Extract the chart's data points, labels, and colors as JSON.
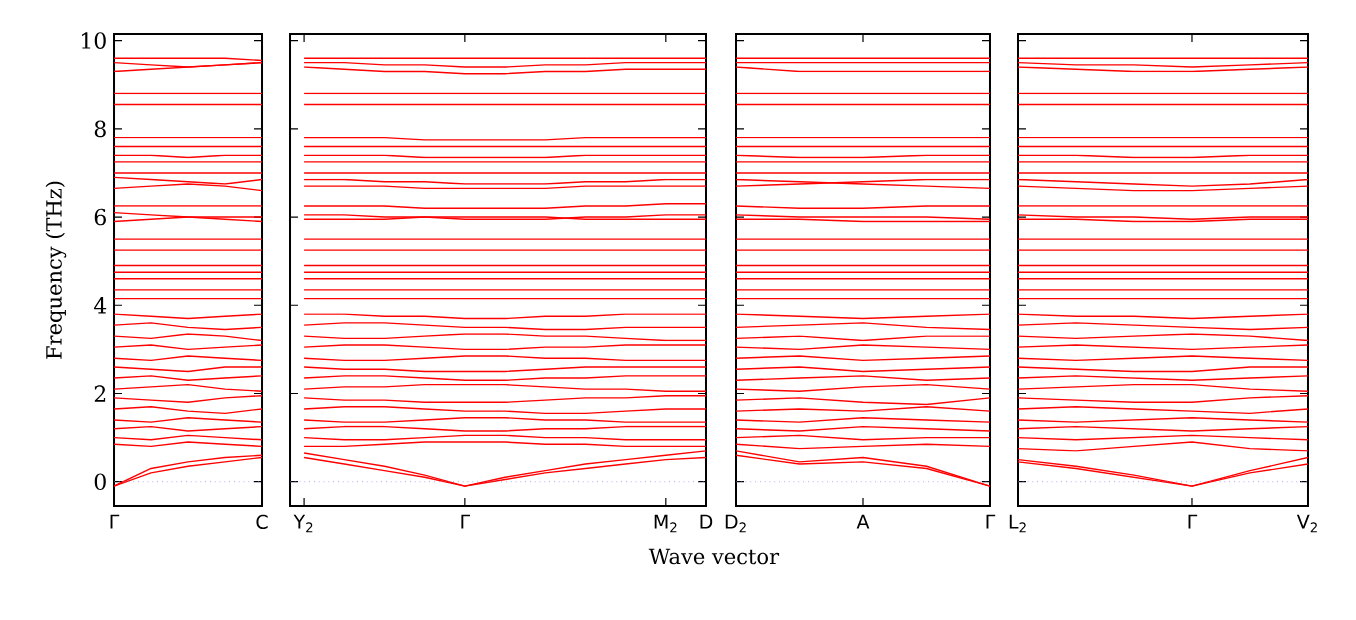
{
  "chart_data": [
    {
      "type": "line",
      "ylabel": "Frequency (THz)",
      "color": "#ff0000",
      "categories": [
        "Γ",
        null,
        null,
        null,
        "C"
      ],
      "ylim": [
        -0.55,
        10.15
      ],
      "yticks": [
        0,
        2,
        4,
        6,
        8,
        10
      ],
      "ref_lines": [
        {
          "axis": "y",
          "value": 0,
          "color": "#8080ff",
          "line_style": "dotted"
        }
      ],
      "series": [
        {
          "values": [
            9.6,
            9.6,
            9.6,
            9.6,
            9.55
          ]
        },
        {
          "values": [
            9.5,
            9.45,
            9.4,
            9.45,
            9.5
          ]
        },
        {
          "values": [
            9.3,
            9.35,
            9.4,
            9.45,
            9.5
          ]
        },
        {
          "values": [
            8.8,
            8.8,
            8.8,
            8.8,
            8.8
          ]
        },
        {
          "values": [
            8.55,
            8.55,
            8.55,
            8.55,
            8.55
          ]
        },
        {
          "values": [
            7.8,
            7.8,
            7.8,
            7.8,
            7.8
          ]
        },
        {
          "values": [
            7.6,
            7.6,
            7.6,
            7.6,
            7.6
          ]
        },
        {
          "values": [
            7.4,
            7.4,
            7.35,
            7.4,
            7.4
          ]
        },
        {
          "values": [
            7.25,
            7.25,
            7.25,
            7.25,
            7.25
          ]
        },
        {
          "values": [
            7.0,
            7.0,
            7.0,
            7.0,
            7.0
          ]
        },
        {
          "values": [
            6.9,
            6.85,
            6.8,
            6.75,
            6.85
          ]
        },
        {
          "values": [
            6.65,
            6.7,
            6.75,
            6.7,
            6.6
          ]
        },
        {
          "values": [
            6.25,
            6.25,
            6.25,
            6.25,
            6.25
          ]
        },
        {
          "values": [
            6.1,
            6.05,
            6.0,
            5.95,
            5.9
          ]
        },
        {
          "values": [
            5.9,
            5.95,
            6.0,
            6.0,
            6.0
          ]
        },
        {
          "values": [
            5.5,
            5.5,
            5.5,
            5.5,
            5.5
          ]
        },
        {
          "values": [
            5.25,
            5.25,
            5.25,
            5.25,
            5.25
          ]
        },
        {
          "values": [
            4.9,
            4.9,
            4.9,
            4.9,
            4.9
          ]
        },
        {
          "values": [
            4.75,
            4.75,
            4.75,
            4.75,
            4.75
          ]
        },
        {
          "values": [
            4.6,
            4.6,
            4.6,
            4.6,
            4.6
          ]
        },
        {
          "values": [
            4.35,
            4.35,
            4.35,
            4.35,
            4.35
          ]
        },
        {
          "values": [
            4.15,
            4.15,
            4.15,
            4.15,
            4.15
          ]
        },
        {
          "values": [
            3.8,
            3.75,
            3.7,
            3.75,
            3.8
          ]
        },
        {
          "values": [
            3.55,
            3.6,
            3.5,
            3.45,
            3.5
          ]
        },
        {
          "values": [
            3.3,
            3.25,
            3.35,
            3.3,
            3.2
          ]
        },
        {
          "values": [
            3.05,
            3.1,
            3.0,
            3.05,
            3.1
          ]
        },
        {
          "values": [
            2.8,
            2.75,
            2.85,
            2.8,
            2.75
          ]
        },
        {
          "values": [
            2.6,
            2.55,
            2.5,
            2.6,
            2.6
          ]
        },
        {
          "values": [
            2.35,
            2.4,
            2.3,
            2.35,
            2.4
          ]
        },
        {
          "values": [
            2.1,
            2.15,
            2.2,
            2.1,
            2.05
          ]
        },
        {
          "values": [
            1.9,
            1.85,
            1.8,
            1.9,
            1.95
          ]
        },
        {
          "values": [
            1.65,
            1.7,
            1.6,
            1.55,
            1.65
          ]
        },
        {
          "values": [
            1.4,
            1.35,
            1.45,
            1.4,
            1.35
          ]
        },
        {
          "values": [
            1.2,
            1.25,
            1.15,
            1.2,
            1.25
          ]
        },
        {
          "values": [
            1.0,
            0.95,
            1.05,
            1.0,
            0.95
          ]
        },
        {
          "values": [
            0.85,
            0.8,
            0.9,
            0.85,
            0.8
          ]
        },
        {
          "values": [
            -0.1,
            0.3,
            0.45,
            0.55,
            0.6
          ]
        },
        {
          "values": [
            -0.1,
            0.2,
            0.35,
            0.45,
            0.55
          ]
        }
      ]
    },
    {
      "type": "line",
      "color": "#ff0000",
      "categories": [
        "Y$_{2}$",
        null,
        null,
        null,
        "Γ",
        null,
        null,
        null,
        null,
        "M$_{2}$",
        "D"
      ],
      "ylim": [
        -0.55,
        10.15
      ],
      "yticks": [
        0,
        2,
        4,
        6,
        8,
        10
      ],
      "tick_labels": "x",
      "xlabel": "Wave vector",
      "ref_lines": [
        {
          "axis": "y",
          "value": 0,
          "color": "#8080ff",
          "line_style": "dotted"
        }
      ],
      "series": [
        {
          "values": [
            9.6,
            9.6,
            9.6,
            9.6,
            9.6,
            9.6,
            9.6,
            9.6,
            9.6,
            9.6,
            9.6
          ]
        },
        {
          "values": [
            9.5,
            9.5,
            9.45,
            9.45,
            9.4,
            9.4,
            9.45,
            9.45,
            9.5,
            9.5,
            9.5
          ]
        },
        {
          "values": [
            9.4,
            9.35,
            9.3,
            9.3,
            9.25,
            9.25,
            9.3,
            9.3,
            9.35,
            9.35,
            9.35
          ]
        },
        {
          "values": [
            8.8,
            8.8,
            8.8,
            8.8,
            8.8,
            8.8,
            8.8,
            8.8,
            8.8,
            8.8,
            8.8
          ]
        },
        {
          "values": [
            8.55,
            8.55,
            8.55,
            8.55,
            8.55,
            8.55,
            8.55,
            8.55,
            8.55,
            8.55,
            8.55
          ]
        },
        {
          "values": [
            7.8,
            7.8,
            7.8,
            7.75,
            7.75,
            7.75,
            7.75,
            7.8,
            7.8,
            7.8,
            7.8
          ]
        },
        {
          "values": [
            7.6,
            7.6,
            7.6,
            7.6,
            7.6,
            7.6,
            7.6,
            7.6,
            7.6,
            7.6,
            7.6
          ]
        },
        {
          "values": [
            7.4,
            7.4,
            7.4,
            7.35,
            7.35,
            7.35,
            7.35,
            7.4,
            7.4,
            7.4,
            7.4
          ]
        },
        {
          "values": [
            7.25,
            7.25,
            7.25,
            7.25,
            7.25,
            7.25,
            7.25,
            7.25,
            7.25,
            7.25,
            7.25
          ]
        },
        {
          "values": [
            7.0,
            7.0,
            7.0,
            7.0,
            7.0,
            7.0,
            7.0,
            7.0,
            7.0,
            7.0,
            7.0
          ]
        },
        {
          "values": [
            6.85,
            6.85,
            6.8,
            6.8,
            6.75,
            6.75,
            6.75,
            6.8,
            6.8,
            6.85,
            6.85
          ]
        },
        {
          "values": [
            6.7,
            6.7,
            6.7,
            6.65,
            6.65,
            6.65,
            6.65,
            6.7,
            6.7,
            6.7,
            6.7
          ]
        },
        {
          "values": [
            6.25,
            6.25,
            6.25,
            6.2,
            6.2,
            6.2,
            6.2,
            6.25,
            6.25,
            6.3,
            6.3
          ]
        },
        {
          "values": [
            6.05,
            6.05,
            6.0,
            6.0,
            5.95,
            5.95,
            5.95,
            6.0,
            6.0,
            6.05,
            6.05
          ]
        },
        {
          "values": [
            5.95,
            5.95,
            5.95,
            6.0,
            6.0,
            6.0,
            6.0,
            5.95,
            5.95,
            5.95,
            5.95
          ]
        },
        {
          "values": [
            5.5,
            5.5,
            5.5,
            5.5,
            5.5,
            5.5,
            5.5,
            5.5,
            5.5,
            5.5,
            5.5
          ]
        },
        {
          "values": [
            5.25,
            5.25,
            5.25,
            5.25,
            5.25,
            5.25,
            5.25,
            5.25,
            5.25,
            5.25,
            5.25
          ]
        },
        {
          "values": [
            4.9,
            4.9,
            4.9,
            4.9,
            4.9,
            4.9,
            4.9,
            4.9,
            4.9,
            4.9,
            4.9
          ]
        },
        {
          "values": [
            4.75,
            4.75,
            4.75,
            4.75,
            4.75,
            4.75,
            4.75,
            4.75,
            4.75,
            4.75,
            4.75
          ]
        },
        {
          "values": [
            4.6,
            4.6,
            4.6,
            4.6,
            4.6,
            4.6,
            4.6,
            4.6,
            4.6,
            4.6,
            4.6
          ]
        },
        {
          "values": [
            4.35,
            4.35,
            4.35,
            4.35,
            4.35,
            4.35,
            4.35,
            4.35,
            4.35,
            4.35,
            4.35
          ]
        },
        {
          "values": [
            4.15,
            4.15,
            4.15,
            4.15,
            4.15,
            4.15,
            4.15,
            4.15,
            4.15,
            4.15,
            4.15
          ]
        },
        {
          "values": [
            3.8,
            3.8,
            3.75,
            3.75,
            3.7,
            3.7,
            3.75,
            3.75,
            3.8,
            3.8,
            3.8
          ]
        },
        {
          "values": [
            3.55,
            3.6,
            3.6,
            3.55,
            3.5,
            3.5,
            3.45,
            3.45,
            3.5,
            3.5,
            3.5
          ]
        },
        {
          "values": [
            3.3,
            3.25,
            3.25,
            3.3,
            3.35,
            3.35,
            3.3,
            3.3,
            3.25,
            3.2,
            3.2
          ]
        },
        {
          "values": [
            3.05,
            3.1,
            3.1,
            3.05,
            3.0,
            3.0,
            3.05,
            3.05,
            3.1,
            3.1,
            3.1
          ]
        },
        {
          "values": [
            2.8,
            2.75,
            2.75,
            2.8,
            2.85,
            2.85,
            2.8,
            2.8,
            2.75,
            2.75,
            2.75
          ]
        },
        {
          "values": [
            2.6,
            2.55,
            2.55,
            2.5,
            2.5,
            2.5,
            2.55,
            2.6,
            2.6,
            2.6,
            2.6
          ]
        },
        {
          "values": [
            2.35,
            2.4,
            2.4,
            2.35,
            2.3,
            2.3,
            2.35,
            2.35,
            2.4,
            2.4,
            2.4
          ]
        },
        {
          "values": [
            2.1,
            2.15,
            2.15,
            2.2,
            2.2,
            2.2,
            2.15,
            2.1,
            2.1,
            2.05,
            2.05
          ]
        },
        {
          "values": [
            1.9,
            1.85,
            1.85,
            1.8,
            1.8,
            1.8,
            1.85,
            1.9,
            1.9,
            1.95,
            1.95
          ]
        },
        {
          "values": [
            1.65,
            1.7,
            1.7,
            1.65,
            1.6,
            1.6,
            1.55,
            1.55,
            1.6,
            1.65,
            1.65
          ]
        },
        {
          "values": [
            1.4,
            1.35,
            1.35,
            1.4,
            1.45,
            1.45,
            1.4,
            1.4,
            1.35,
            1.35,
            1.35
          ]
        },
        {
          "values": [
            1.2,
            1.25,
            1.25,
            1.2,
            1.15,
            1.15,
            1.2,
            1.2,
            1.25,
            1.25,
            1.25
          ]
        },
        {
          "values": [
            1.0,
            0.95,
            0.95,
            1.0,
            1.05,
            1.05,
            1.0,
            1.0,
            0.95,
            0.95,
            0.95
          ]
        },
        {
          "values": [
            0.8,
            0.8,
            0.85,
            0.9,
            0.9,
            0.9,
            0.85,
            0.85,
            0.8,
            0.8,
            0.8
          ]
        },
        {
          "values": [
            0.65,
            0.5,
            0.35,
            0.15,
            -0.1,
            0.1,
            0.25,
            0.4,
            0.5,
            0.6,
            0.7
          ]
        },
        {
          "values": [
            0.55,
            0.4,
            0.25,
            0.1,
            -0.1,
            0.05,
            0.2,
            0.3,
            0.4,
            0.5,
            0.55
          ]
        }
      ]
    },
    {
      "type": "line",
      "color": "#ff0000",
      "categories": [
        "D$_{2}$",
        null,
        "A",
        null,
        "Γ"
      ],
      "ylim": [
        -0.55,
        10.15
      ],
      "yticks": [
        0,
        2,
        4,
        6,
        8,
        10
      ],
      "tick_labels": "x",
      "ref_lines": [
        {
          "axis": "y",
          "value": 0,
          "color": "#8080ff",
          "line_style": "dotted"
        }
      ],
      "series": [
        {
          "values": [
            9.6,
            9.6,
            9.6,
            9.6,
            9.6
          ]
        },
        {
          "values": [
            9.5,
            9.5,
            9.5,
            9.5,
            9.5
          ]
        },
        {
          "values": [
            9.4,
            9.3,
            9.3,
            9.3,
            9.3
          ]
        },
        {
          "values": [
            8.8,
            8.8,
            8.8,
            8.8,
            8.8
          ]
        },
        {
          "values": [
            8.55,
            8.55,
            8.55,
            8.55,
            8.55
          ]
        },
        {
          "values": [
            7.8,
            7.8,
            7.8,
            7.8,
            7.8
          ]
        },
        {
          "values": [
            7.6,
            7.6,
            7.6,
            7.6,
            7.6
          ]
        },
        {
          "values": [
            7.4,
            7.35,
            7.35,
            7.4,
            7.4
          ]
        },
        {
          "values": [
            7.25,
            7.25,
            7.25,
            7.25,
            7.25
          ]
        },
        {
          "values": [
            7.0,
            7.0,
            7.0,
            7.0,
            7.0
          ]
        },
        {
          "values": [
            6.85,
            6.8,
            6.75,
            6.7,
            6.65
          ]
        },
        {
          "values": [
            6.7,
            6.75,
            6.8,
            6.85,
            6.85
          ]
        },
        {
          "values": [
            6.25,
            6.2,
            6.2,
            6.25,
            6.25
          ]
        },
        {
          "values": [
            6.05,
            6.0,
            6.0,
            6.0,
            5.95
          ]
        },
        {
          "values": [
            5.95,
            5.95,
            5.9,
            5.9,
            5.9
          ]
        },
        {
          "values": [
            5.5,
            5.5,
            5.5,
            5.5,
            5.5
          ]
        },
        {
          "values": [
            5.25,
            5.25,
            5.25,
            5.25,
            5.25
          ]
        },
        {
          "values": [
            4.9,
            4.9,
            4.9,
            4.9,
            4.9
          ]
        },
        {
          "values": [
            4.75,
            4.75,
            4.75,
            4.75,
            4.75
          ]
        },
        {
          "values": [
            4.6,
            4.6,
            4.6,
            4.6,
            4.6
          ]
        },
        {
          "values": [
            4.35,
            4.35,
            4.35,
            4.35,
            4.35
          ]
        },
        {
          "values": [
            4.15,
            4.15,
            4.15,
            4.15,
            4.15
          ]
        },
        {
          "values": [
            3.8,
            3.75,
            3.7,
            3.75,
            3.8
          ]
        },
        {
          "values": [
            3.5,
            3.55,
            3.6,
            3.5,
            3.45
          ]
        },
        {
          "values": [
            3.25,
            3.3,
            3.2,
            3.3,
            3.3
          ]
        },
        {
          "values": [
            3.05,
            3.0,
            3.1,
            3.05,
            3.0
          ]
        },
        {
          "values": [
            2.8,
            2.85,
            2.75,
            2.8,
            2.85
          ]
        },
        {
          "values": [
            2.55,
            2.6,
            2.5,
            2.55,
            2.6
          ]
        },
        {
          "values": [
            2.3,
            2.35,
            2.4,
            2.3,
            2.35
          ]
        },
        {
          "values": [
            2.1,
            2.05,
            2.15,
            2.2,
            2.1
          ]
        },
        {
          "values": [
            1.85,
            1.9,
            1.8,
            1.75,
            1.9
          ]
        },
        {
          "values": [
            1.6,
            1.65,
            1.6,
            1.7,
            1.6
          ]
        },
        {
          "values": [
            1.4,
            1.35,
            1.45,
            1.4,
            1.35
          ]
        },
        {
          "values": [
            1.2,
            1.15,
            1.25,
            1.2,
            1.15
          ]
        },
        {
          "values": [
            1.0,
            1.05,
            0.95,
            1.0,
            1.0
          ]
        },
        {
          "values": [
            0.85,
            0.75,
            0.8,
            0.85,
            0.8
          ]
        },
        {
          "values": [
            0.7,
            0.45,
            0.55,
            0.35,
            -0.1
          ]
        },
        {
          "values": [
            0.6,
            0.4,
            0.45,
            0.3,
            -0.1
          ]
        }
      ]
    },
    {
      "type": "line",
      "color": "#ff0000",
      "categories": [
        "L$_{2}$",
        null,
        null,
        "Γ",
        null,
        "V$_{2}$"
      ],
      "ylim": [
        -0.55,
        10.15
      ],
      "yticks": [
        0,
        2,
        4,
        6,
        8,
        10
      ],
      "tick_labels": "x",
      "ref_lines": [
        {
          "axis": "y",
          "value": 0,
          "color": "#8080ff",
          "line_style": "dotted"
        }
      ],
      "series": [
        {
          "values": [
            9.6,
            9.6,
            9.6,
            9.6,
            9.6,
            9.6
          ]
        },
        {
          "values": [
            9.5,
            9.45,
            9.45,
            9.4,
            9.45,
            9.5
          ]
        },
        {
          "values": [
            9.4,
            9.35,
            9.3,
            9.3,
            9.35,
            9.4
          ]
        },
        {
          "values": [
            8.8,
            8.8,
            8.8,
            8.8,
            8.8,
            8.8
          ]
        },
        {
          "values": [
            8.55,
            8.55,
            8.55,
            8.55,
            8.55,
            8.55
          ]
        },
        {
          "values": [
            7.8,
            7.8,
            7.8,
            7.8,
            7.8,
            7.8
          ]
        },
        {
          "values": [
            7.6,
            7.6,
            7.6,
            7.6,
            7.6,
            7.6
          ]
        },
        {
          "values": [
            7.4,
            7.4,
            7.35,
            7.35,
            7.4,
            7.4
          ]
        },
        {
          "values": [
            7.25,
            7.25,
            7.25,
            7.25,
            7.25,
            7.25
          ]
        },
        {
          "values": [
            7.0,
            7.0,
            7.0,
            7.0,
            7.0,
            7.0
          ]
        },
        {
          "values": [
            6.85,
            6.8,
            6.75,
            6.7,
            6.75,
            6.85
          ]
        },
        {
          "values": [
            6.7,
            6.65,
            6.6,
            6.6,
            6.65,
            6.7
          ]
        },
        {
          "values": [
            6.25,
            6.25,
            6.25,
            6.25,
            6.25,
            6.25
          ]
        },
        {
          "values": [
            6.05,
            6.0,
            6.0,
            5.95,
            6.0,
            6.0
          ]
        },
        {
          "values": [
            5.95,
            5.95,
            5.9,
            5.9,
            5.95,
            5.95
          ]
        },
        {
          "values": [
            5.5,
            5.5,
            5.5,
            5.5,
            5.5,
            5.5
          ]
        },
        {
          "values": [
            5.25,
            5.25,
            5.25,
            5.25,
            5.25,
            5.25
          ]
        },
        {
          "values": [
            4.9,
            4.9,
            4.9,
            4.9,
            4.9,
            4.9
          ]
        },
        {
          "values": [
            4.75,
            4.75,
            4.75,
            4.75,
            4.75,
            4.75
          ]
        },
        {
          "values": [
            4.6,
            4.6,
            4.6,
            4.6,
            4.6,
            4.6
          ]
        },
        {
          "values": [
            4.35,
            4.35,
            4.35,
            4.35,
            4.35,
            4.35
          ]
        },
        {
          "values": [
            4.15,
            4.15,
            4.15,
            4.15,
            4.15,
            4.15
          ]
        },
        {
          "values": [
            3.8,
            3.75,
            3.75,
            3.7,
            3.75,
            3.8
          ]
        },
        {
          "values": [
            3.55,
            3.6,
            3.55,
            3.5,
            3.45,
            3.5
          ]
        },
        {
          "values": [
            3.3,
            3.25,
            3.3,
            3.35,
            3.3,
            3.2
          ]
        },
        {
          "values": [
            3.05,
            3.1,
            3.05,
            3.0,
            3.05,
            3.1
          ]
        },
        {
          "values": [
            2.8,
            2.75,
            2.8,
            2.85,
            2.8,
            2.75
          ]
        },
        {
          "values": [
            2.6,
            2.55,
            2.5,
            2.5,
            2.6,
            2.6
          ]
        },
        {
          "values": [
            2.35,
            2.4,
            2.35,
            2.3,
            2.35,
            2.4
          ]
        },
        {
          "values": [
            2.1,
            2.15,
            2.2,
            2.2,
            2.1,
            2.05
          ]
        },
        {
          "values": [
            1.9,
            1.85,
            1.8,
            1.8,
            1.9,
            1.95
          ]
        },
        {
          "values": [
            1.65,
            1.7,
            1.65,
            1.6,
            1.55,
            1.65
          ]
        },
        {
          "values": [
            1.4,
            1.35,
            1.4,
            1.45,
            1.4,
            1.35
          ]
        },
        {
          "values": [
            1.2,
            1.25,
            1.2,
            1.15,
            1.2,
            1.25
          ]
        },
        {
          "values": [
            1.0,
            0.95,
            1.0,
            1.05,
            1.0,
            0.95
          ]
        },
        {
          "values": [
            0.75,
            0.7,
            0.8,
            0.9,
            0.75,
            0.7
          ]
        },
        {
          "values": [
            0.5,
            0.35,
            0.15,
            -0.1,
            0.25,
            0.55
          ]
        },
        {
          "values": [
            0.45,
            0.3,
            0.1,
            -0.1,
            0.2,
            0.4
          ]
        }
      ]
    }
  ]
}
